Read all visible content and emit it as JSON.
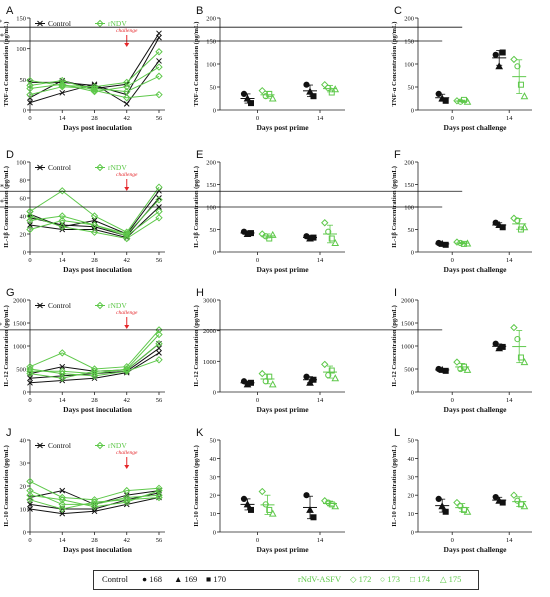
{
  "colors": {
    "control": "#111111",
    "rndv": "#5ec84a",
    "challenge": "#e5262a"
  },
  "legend": {
    "control_label": "Control",
    "rndv_label": "rNdV-ASFV",
    "control_ids": [
      {
        "id": "168",
        "marker": "circle"
      },
      {
        "id": "169",
        "marker": "triangle"
      },
      {
        "id": "170",
        "marker": "square"
      }
    ],
    "rndv_ids": [
      {
        "id": "172",
        "marker": "diamond"
      },
      {
        "id": "173",
        "marker": "circle"
      },
      {
        "id": "174",
        "marker": "square"
      },
      {
        "id": "175",
        "marker": "triangle"
      }
    ]
  },
  "chart_data": [
    {
      "panel": "A",
      "type": "line",
      "ylabel": "TNF-α Concentration (pg/mL)",
      "xlabel": "Days post inoculation",
      "x": [
        0,
        14,
        28,
        42,
        56
      ],
      "ylim": [
        0,
        150
      ],
      "yticks": [
        0,
        50,
        100,
        150
      ],
      "legend": [
        "Control",
        "rNDV"
      ],
      "annotation": {
        "text": "challenge",
        "x": 42
      },
      "series": [
        {
          "group": "control",
          "values": [
            20,
            48,
            35,
            42,
            125
          ]
        },
        {
          "group": "control",
          "values": [
            45,
            45,
            40,
            25,
            118
          ]
        },
        {
          "group": "control",
          "values": [
            12,
            28,
            42,
            10,
            80
          ]
        },
        {
          "group": "rndv",
          "values": [
            48,
            40,
            38,
            45,
            95
          ]
        },
        {
          "group": "rndv",
          "values": [
            35,
            42,
            30,
            38,
            70
          ]
        },
        {
          "group": "rndv",
          "values": [
            25,
            38,
            35,
            30,
            55
          ]
        },
        {
          "group": "rndv",
          "values": [
            40,
            48,
            32,
            20,
            25
          ]
        }
      ]
    },
    {
      "panel": "B",
      "type": "scatter",
      "ylabel": "TNF-α Concentration (pg/mL)",
      "xlabel": "Days post prime",
      "categories": [
        "0",
        "14"
      ],
      "ylim": [
        0,
        200
      ],
      "yticks": [
        0,
        50,
        100,
        150,
        200
      ],
      "groups": {
        "control": [
          [
            35,
            25,
            15
          ],
          [
            55,
            40,
            30
          ]
        ],
        "rndv": [
          [
            42,
            30,
            35,
            25
          ],
          [
            55,
            48,
            38,
            45
          ]
        ]
      }
    },
    {
      "panel": "C",
      "type": "scatter",
      "ylabel": "TNF-α Concentration (pg/mL)",
      "xlabel": "Days post challenge",
      "categories": [
        "0",
        "14"
      ],
      "ylim": [
        0,
        200
      ],
      "yticks": [
        0,
        50,
        100,
        150,
        200
      ],
      "groups": {
        "control": [
          [
            35,
            25,
            20
          ],
          [
            120,
            95,
            125
          ]
        ],
        "rndv": [
          [
            20,
            18,
            22,
            18
          ],
          [
            110,
            95,
            55,
            30
          ]
        ]
      },
      "significance": [
        {
          "label": "**",
          "from": "control-0",
          "to": "control-14",
          "y": 150
        },
        {
          "label": "*",
          "from": "rndv-0",
          "to": "rndv-14",
          "y": 180
        }
      ]
    },
    {
      "panel": "D",
      "type": "line",
      "ylabel": "IL-1β Concentration (pg/mL)",
      "xlabel": "Days post inoculation",
      "x": [
        0,
        14,
        28,
        42,
        56
      ],
      "ylim": [
        0,
        100
      ],
      "yticks": [
        0,
        20,
        40,
        60,
        80,
        100
      ],
      "legend": [
        "Control",
        "rNDV"
      ],
      "annotation": {
        "text": "challenge",
        "x": 42
      },
      "series": [
        {
          "group": "control",
          "values": [
            42,
            28,
            35,
            20,
            68
          ]
        },
        {
          "group": "control",
          "values": [
            38,
            30,
            28,
            18,
            60
          ]
        },
        {
          "group": "control",
          "values": [
            30,
            25,
            25,
            16,
            50
          ]
        },
        {
          "group": "rndv",
          "values": [
            45,
            68,
            40,
            22,
            72
          ]
        },
        {
          "group": "rndv",
          "values": [
            35,
            40,
            30,
            20,
            58
          ]
        },
        {
          "group": "rndv",
          "values": [
            25,
            35,
            30,
            18,
            45
          ]
        },
        {
          "group": "rndv",
          "values": [
            40,
            28,
            22,
            15,
            38
          ]
        }
      ]
    },
    {
      "panel": "E",
      "type": "scatter",
      "ylabel": "IL-1β Concentration (pg/mL)",
      "xlabel": "Days post prime",
      "categories": [
        "0",
        "14"
      ],
      "ylim": [
        0,
        200
      ],
      "yticks": [
        0,
        50,
        100,
        150,
        200
      ],
      "groups": {
        "control": [
          [
            45,
            40,
            42
          ],
          [
            35,
            30,
            32
          ]
        ],
        "rndv": [
          [
            40,
            35,
            30,
            38
          ],
          [
            65,
            45,
            30,
            20
          ]
        ]
      }
    },
    {
      "panel": "F",
      "type": "scatter",
      "ylabel": "IL-1β Concentration (pg/mL)",
      "xlabel": "Days post challenge",
      "categories": [
        "0",
        "14"
      ],
      "ylim": [
        0,
        200
      ],
      "yticks": [
        0,
        50,
        100,
        150,
        200
      ],
      "groups": {
        "control": [
          [
            20,
            18,
            16
          ],
          [
            65,
            60,
            55
          ]
        ],
        "rndv": [
          [
            22,
            20,
            18,
            19
          ],
          [
            75,
            70,
            50,
            55
          ]
        ]
      },
      "significance": [
        {
          "label": "**",
          "from": "control-0",
          "to": "control-14",
          "y": 100
        },
        {
          "label": "**",
          "from": "rndv-0",
          "to": "rndv-14",
          "y": 135
        }
      ]
    },
    {
      "panel": "G",
      "type": "line",
      "ylabel": "IL-12 Concentration (pg/mL)",
      "xlabel": "Days post inoculation",
      "x": [
        0,
        14,
        28,
        42,
        56
      ],
      "ylim": [
        0,
        2000
      ],
      "yticks": [
        0,
        500,
        1000,
        1500,
        2000
      ],
      "legend": [
        "Control",
        "rNDV"
      ],
      "annotation": {
        "text": "challenge",
        "x": 42
      },
      "series": [
        {
          "group": "control",
          "values": [
            400,
            550,
            450,
            480,
            1050
          ]
        },
        {
          "group": "control",
          "values": [
            300,
            350,
            400,
            450,
            950
          ]
        },
        {
          "group": "control",
          "values": [
            200,
            250,
            300,
            420,
            850
          ]
        },
        {
          "group": "rndv",
          "values": [
            550,
            850,
            500,
            550,
            1350
          ]
        },
        {
          "group": "rndv",
          "values": [
            450,
            450,
            400,
            500,
            1250
          ]
        },
        {
          "group": "rndv",
          "values": [
            400,
            300,
            450,
            480,
            1050
          ]
        },
        {
          "group": "rndv",
          "values": [
            500,
            400,
            350,
            450,
            700
          ]
        }
      ]
    },
    {
      "panel": "H",
      "type": "scatter",
      "ylabel": "IL-12 Concentration (pg/mL)",
      "xlabel": "Days post prime",
      "categories": [
        "0",
        "14"
      ],
      "ylim": [
        0,
        3000
      ],
      "yticks": [
        0,
        1000,
        2000,
        3000
      ],
      "groups": {
        "control": [
          [
            350,
            250,
            300
          ],
          [
            500,
            300,
            400
          ]
        ],
        "rndv": [
          [
            600,
            350,
            500,
            250
          ],
          [
            900,
            550,
            700,
            450
          ]
        ]
      }
    },
    {
      "panel": "I",
      "type": "scatter",
      "ylabel": "IL-12 Concentration (pg/mL)",
      "xlabel": "Days post challenge",
      "categories": [
        "0",
        "14"
      ],
      "ylim": [
        0,
        2000
      ],
      "yticks": [
        0,
        500,
        1000,
        1500,
        2000
      ],
      "groups": {
        "control": [
          [
            500,
            480,
            460
          ],
          [
            1050,
            950,
            980
          ]
        ],
        "rndv": [
          [
            650,
            500,
            550,
            480
          ],
          [
            1400,
            1150,
            750,
            650
          ]
        ]
      },
      "significance": [
        {
          "label": "*",
          "from": "control-0",
          "to": "control-14",
          "y": 1350
        }
      ]
    },
    {
      "panel": "J",
      "type": "line",
      "ylabel": "IL-10 Concentration (pg/mL)",
      "xlabel": "Days post inoculation",
      "x": [
        0,
        14,
        28,
        42,
        56
      ],
      "ylim": [
        0,
        40
      ],
      "yticks": [
        0,
        10,
        20,
        30,
        40
      ],
      "legend": [
        "Control",
        "rNDV"
      ],
      "annotation": {
        "text": "challenge",
        "x": 42
      },
      "series": [
        {
          "group": "control",
          "values": [
            15,
            18,
            12,
            16,
            18
          ]
        },
        {
          "group": "control",
          "values": [
            12,
            10,
            10,
            14,
            17
          ]
        },
        {
          "group": "control",
          "values": [
            10,
            8,
            9,
            12,
            15
          ]
        },
        {
          "group": "rndv",
          "values": [
            22,
            15,
            14,
            18,
            19
          ]
        },
        {
          "group": "rndv",
          "values": [
            18,
            12,
            12,
            15,
            16
          ]
        },
        {
          "group": "rndv",
          "values": [
            14,
            10,
            13,
            14,
            15
          ]
        },
        {
          "group": "rndv",
          "values": [
            16,
            14,
            11,
            13,
            18
          ]
        }
      ]
    },
    {
      "panel": "K",
      "type": "scatter",
      "ylabel": "IL-10 Concentration (pg/mL)",
      "xlabel": "Days post prime",
      "categories": [
        "0",
        "14"
      ],
      "ylim": [
        0,
        50
      ],
      "yticks": [
        0,
        10,
        20,
        30,
        40,
        50
      ],
      "groups": {
        "control": [
          [
            18,
            15,
            12
          ],
          [
            20,
            12,
            8
          ]
        ],
        "rndv": [
          [
            22,
            15,
            12,
            10
          ],
          [
            17,
            16,
            15,
            14
          ]
        ]
      }
    },
    {
      "panel": "L",
      "type": "scatter",
      "ylabel": "IL-10 Concentration (pg/mL)",
      "xlabel": "Days post challenge",
      "categories": [
        "0",
        "14"
      ],
      "ylim": [
        0,
        50
      ],
      "yticks": [
        0,
        10,
        20,
        30,
        40,
        50
      ],
      "groups": {
        "control": [
          [
            18,
            14,
            11
          ],
          [
            19,
            17,
            16
          ]
        ],
        "rndv": [
          [
            16,
            14,
            12,
            11
          ],
          [
            20,
            17,
            15,
            14
          ]
        ]
      }
    }
  ]
}
